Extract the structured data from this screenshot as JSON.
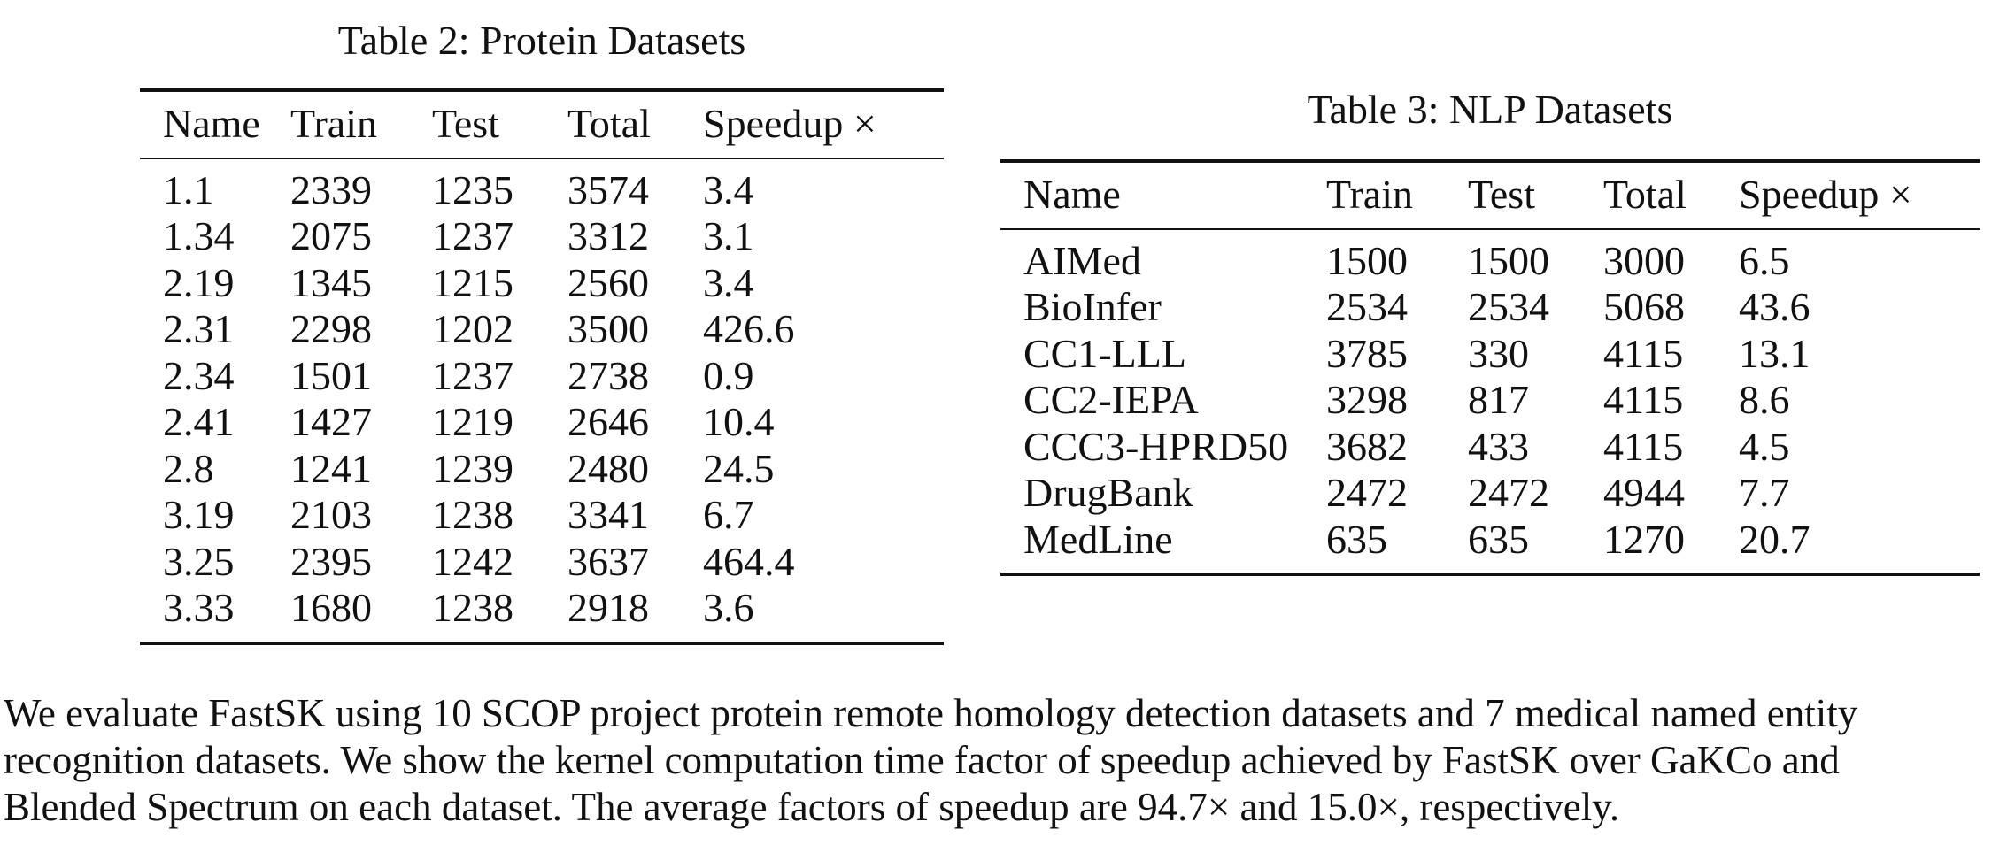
{
  "table2": {
    "caption": "Table 2: Protein Datasets",
    "headers": [
      "Name",
      "Train",
      "Test",
      "Total",
      "Speedup ×"
    ],
    "rows": [
      [
        "1.1",
        "2339",
        "1235",
        "3574",
        "3.4"
      ],
      [
        "1.34",
        "2075",
        "1237",
        "3312",
        "3.1"
      ],
      [
        "2.19",
        "1345",
        "1215",
        "2560",
        "3.4"
      ],
      [
        "2.31",
        "2298",
        "1202",
        "3500",
        "426.6"
      ],
      [
        "2.34",
        "1501",
        "1237",
        "2738",
        "0.9"
      ],
      [
        "2.41",
        "1427",
        "1219",
        "2646",
        "10.4"
      ],
      [
        "2.8",
        "1241",
        "1239",
        "2480",
        "24.5"
      ],
      [
        "3.19",
        "2103",
        "1238",
        "3341",
        "6.7"
      ],
      [
        "3.25",
        "2395",
        "1242",
        "3637",
        "464.4"
      ],
      [
        "3.33",
        "1680",
        "1238",
        "2918",
        "3.6"
      ]
    ]
  },
  "table3": {
    "caption": "Table 3: NLP Datasets",
    "headers": [
      "Name",
      "Train",
      "Test",
      "Total",
      "Speedup ×"
    ],
    "rows": [
      [
        "AIMed",
        "1500",
        "1500",
        "3000",
        "6.5"
      ],
      [
        "BioInfer",
        "2534",
        "2534",
        "5068",
        "43.6"
      ],
      [
        "CC1-LLL",
        "3785",
        "330",
        "4115",
        "13.1"
      ],
      [
        "CC2-IEPA",
        "3298",
        "817",
        "4115",
        "8.6"
      ],
      [
        "CCC3-HPRD50",
        "3682",
        "433",
        "4115",
        "4.5"
      ],
      [
        "DrugBank",
        "2472",
        "2472",
        "4944",
        "7.7"
      ],
      [
        "MedLine",
        "635",
        "635",
        "1270",
        "20.7"
      ]
    ]
  },
  "paragraph": {
    "lines": [
      "We evaluate FastSK  using 10 SCOP project protein remote homology detection datasets and 7 medical named entity",
      "recognition datasets. We show the kernel computation time factor of speedup achieved by FastSK  over GaKCo and",
      "Blended Spectrum on each dataset. The average factors of speedup are 94.7× and 15.0×, respectively."
    ]
  }
}
